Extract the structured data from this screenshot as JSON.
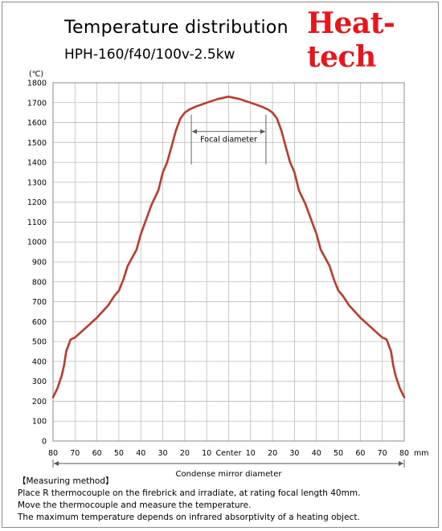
{
  "header": {
    "title": "Temperature distribution",
    "subtitle": "HPH-160/f40/100v-2.5kw",
    "brand": "Heat-tech"
  },
  "colors": {
    "series": "#c0392b",
    "grid": "#bdbdbd",
    "brand": "#e8161b"
  },
  "chart_data": {
    "type": "line",
    "title": "Temperature distribution",
    "subtitle": "HPH-160/f40/100v-2.5kw",
    "y_unit": "(℃)",
    "x_unit": "mm",
    "xlabel": "Condense mirror diameter",
    "focal_label": "Focal diameter",
    "focal_range": [
      -17,
      17
    ],
    "center_label": "Center",
    "ylim": [
      0,
      1800
    ],
    "y_ticks": [
      "0",
      "100",
      "200",
      "300",
      "400",
      "500",
      "600",
      "700",
      "800",
      "900",
      "1000",
      "1100",
      "1200",
      "1300",
      "1400",
      "1500",
      "1600",
      "1700",
      "1800"
    ],
    "x_ticks": [
      "80",
      "70",
      "60",
      "50",
      "40",
      "30",
      "20",
      "10",
      "",
      "10",
      "20",
      "30",
      "40",
      "50",
      "60",
      "70",
      "80"
    ],
    "grid": true,
    "series": [
      {
        "x": [
          -80,
          -78,
          -76,
          -75,
          -74,
          -72,
          -70,
          -65,
          -60,
          -55,
          -52,
          -50,
          -48,
          -46,
          -44,
          -42,
          -40,
          -38,
          -35,
          -32,
          -30,
          -28,
          -26,
          -24,
          -22,
          -20,
          -18,
          -15,
          -10,
          -5,
          0,
          5,
          10,
          15,
          18,
          20,
          22,
          24,
          26,
          28,
          30,
          32,
          35,
          38,
          40,
          42,
          44,
          46,
          48,
          50,
          52,
          55,
          60,
          65,
          70,
          72,
          74,
          75,
          76,
          78,
          80
        ],
        "values": [
          220,
          265,
          330,
          380,
          450,
          510,
          520,
          570,
          620,
          680,
          730,
          755,
          810,
          880,
          920,
          960,
          1040,
          1100,
          1190,
          1260,
          1350,
          1400,
          1480,
          1560,
          1620,
          1650,
          1665,
          1680,
          1700,
          1718,
          1730,
          1718,
          1700,
          1680,
          1665,
          1650,
          1620,
          1560,
          1480,
          1400,
          1350,
          1260,
          1190,
          1100,
          1040,
          960,
          920,
          880,
          810,
          755,
          730,
          680,
          620,
          570,
          520,
          510,
          450,
          380,
          330,
          265,
          220
        ]
      }
    ]
  },
  "notes": {
    "heading": "【Measuring method】",
    "lines": [
      "Place R thermocouple on the firebrick and irradiate, at rating focal length 40mm.",
      "Move the thermocouple and measure the temperature.",
      "The maximum temperature depends on infrared absorptivity of a heating object."
    ]
  }
}
